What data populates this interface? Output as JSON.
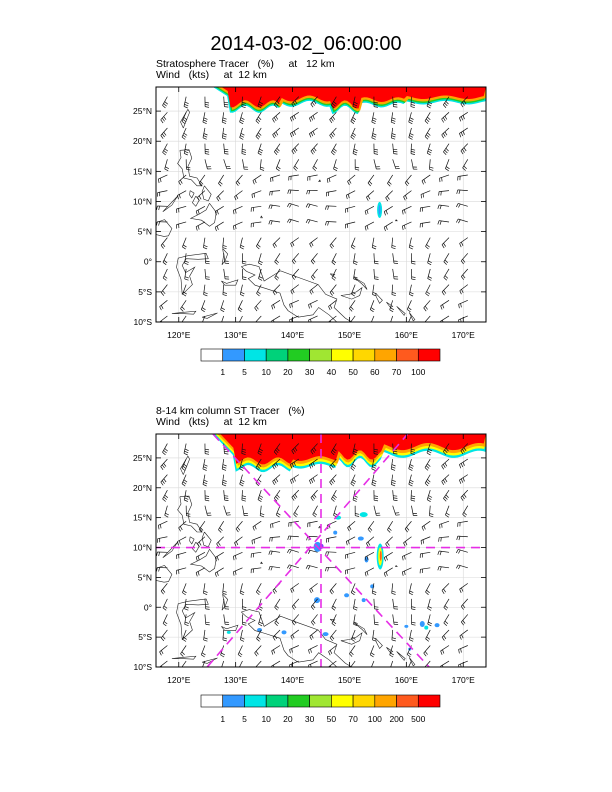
{
  "figure_title": "2014-03-02_06:00:00",
  "chart_data": [
    {
      "type": "heatmap",
      "title_line1": "Stratosphere Tracer   (%)     at   12 km",
      "title_line2": "Wind   (kts)     at  12 km",
      "field": "Stratosphere Tracer",
      "units": "%",
      "level": "12 km",
      "overlay": "Wind barbs (kts) at 12 km",
      "x_range": [
        116,
        174
      ],
      "y_range": [
        -10,
        29
      ],
      "x_ticks": [
        120,
        130,
        140,
        150,
        160,
        170
      ],
      "x_tick_labels": [
        "120°E",
        "130°E",
        "140°E",
        "150°E",
        "160°E",
        "170°E"
      ],
      "y_ticks": [
        -10,
        -5,
        0,
        5,
        10,
        15,
        20,
        25
      ],
      "y_tick_labels": [
        "10°S",
        "5°S",
        "0°",
        "5°N",
        "10°N",
        "15°N",
        "20°N",
        "25°N"
      ],
      "colorbar_labels": [
        "1",
        "5",
        "10",
        "20",
        "30",
        "40",
        "50",
        "60",
        "70",
        "100"
      ],
      "colorbar_colors": [
        "#ffffff",
        "#3399ff",
        "#00e5e5",
        "#00d27a",
        "#22cc22",
        "#a0e632",
        "#ffff00",
        "#ffd700",
        "#ffa500",
        "#ff5a1e",
        "#ff0000"
      ]
    },
    {
      "type": "heatmap",
      "title_line1": "8-14 km column ST Tracer   (%)",
      "title_line2": "Wind   (kts)     at  12 km",
      "field": "8-14 km column ST Tracer",
      "units": "%",
      "level": "8-14 km column",
      "overlay": "Wind barbs (kts) at 12 km; magenta dashed cross sections centered near 145°E, 10°N",
      "x_range": [
        116,
        174
      ],
      "y_range": [
        -10,
        29
      ],
      "x_ticks": [
        120,
        130,
        140,
        150,
        160,
        170
      ],
      "x_tick_labels": [
        "120°E",
        "130°E",
        "140°E",
        "150°E",
        "160°E",
        "170°E"
      ],
      "y_ticks": [
        -10,
        -5,
        0,
        5,
        10,
        15,
        20,
        25
      ],
      "y_tick_labels": [
        "10°S",
        "5°S",
        "0°",
        "5°N",
        "10°N",
        "15°N",
        "20°N",
        "25°N"
      ],
      "colorbar_labels": [
        "1",
        "5",
        "10",
        "20",
        "30",
        "50",
        "70",
        "100",
        "200",
        "500"
      ],
      "colorbar_colors": [
        "#ffffff",
        "#3399ff",
        "#00e5e5",
        "#00d27a",
        "#22cc22",
        "#a0e632",
        "#ffff00",
        "#ffd700",
        "#ffa500",
        "#ff5a1e",
        "#ff0000"
      ],
      "cross_center": [
        145,
        10
      ]
    }
  ]
}
